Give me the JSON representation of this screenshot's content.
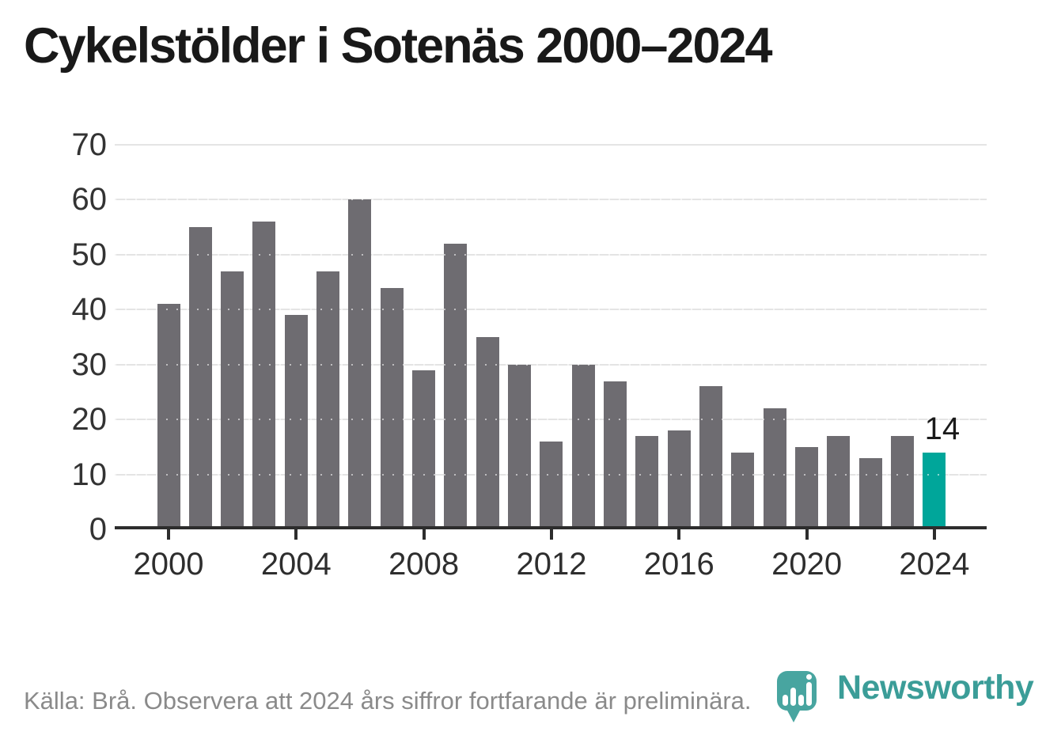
{
  "title": "Cykelstölder i Sotenäs 2000–2024",
  "source_note": "Källa: Brå. Observera att 2024 års siffror fortfarande är preliminära.",
  "branding": {
    "wordmark": "Newsworthy",
    "logo_icon": "newsworthy-pin-barchart-icon"
  },
  "colors": {
    "bar": "#6e6c71",
    "highlight_bar": "#00a69a",
    "grid": "#e4e4e4",
    "axis": "#2d2d2d",
    "title_text": "#191919",
    "tick_label": "#2e2e2e",
    "source_text": "#8a8a8a",
    "brand_teal": "#3b9d98"
  },
  "chart_data": {
    "type": "bar",
    "title": "Cykelstölder i Sotenäs 2000–2024",
    "categories": [
      2000,
      2001,
      2002,
      2003,
      2004,
      2005,
      2006,
      2007,
      2008,
      2009,
      2010,
      2011,
      2012,
      2013,
      2014,
      2015,
      2016,
      2017,
      2018,
      2019,
      2020,
      2021,
      2022,
      2023,
      2024
    ],
    "values": [
      41,
      55,
      47,
      56,
      39,
      47,
      60,
      44,
      29,
      52,
      35,
      30,
      16,
      30,
      27,
      17,
      18,
      26,
      14,
      22,
      15,
      17,
      13,
      17,
      14
    ],
    "highlight_year": 2024,
    "highlight_value_label": "14",
    "x_tick_labels": [
      "2000",
      "2004",
      "2008",
      "2012",
      "2016",
      "2020",
      "2024"
    ],
    "y_ticks": [
      0,
      10,
      20,
      30,
      40,
      50,
      60,
      70
    ],
    "ylim": [
      0,
      70
    ],
    "xlabel": "",
    "ylabel": "",
    "grid": true,
    "legend": "none"
  }
}
